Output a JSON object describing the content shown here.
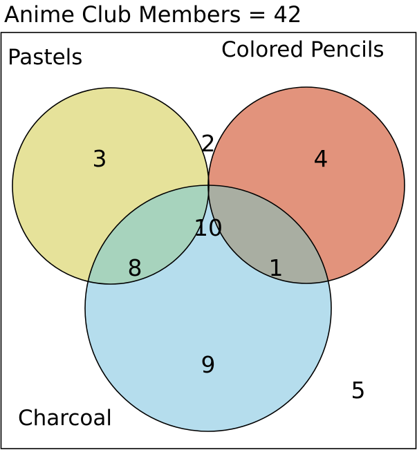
{
  "title": "Anime Club Members = 42",
  "sets": {
    "pastels": {
      "label": "Pastels",
      "color": "#e6e29a"
    },
    "colored_pencils": {
      "label": "Colored Pencils",
      "color": "#e2937c"
    },
    "charcoal": {
      "label": "Charcoal",
      "color": "#b5dded"
    }
  },
  "overlap_colors": {
    "pastels_colored_pencils": "#d98b52",
    "pastels_charcoal": "#a7d3bd",
    "colored_pencils_charcoal": "#a9aea2",
    "all_three": "#a1a58a"
  },
  "regions": {
    "pastels_only": "3",
    "colored_pencils_only": "4",
    "charcoal_only": "9",
    "pastels_and_colored_pencils": "2",
    "pastels_and_charcoal": "8",
    "colored_pencils_and_charcoal": "1",
    "all_three": "10",
    "none": "5"
  }
}
